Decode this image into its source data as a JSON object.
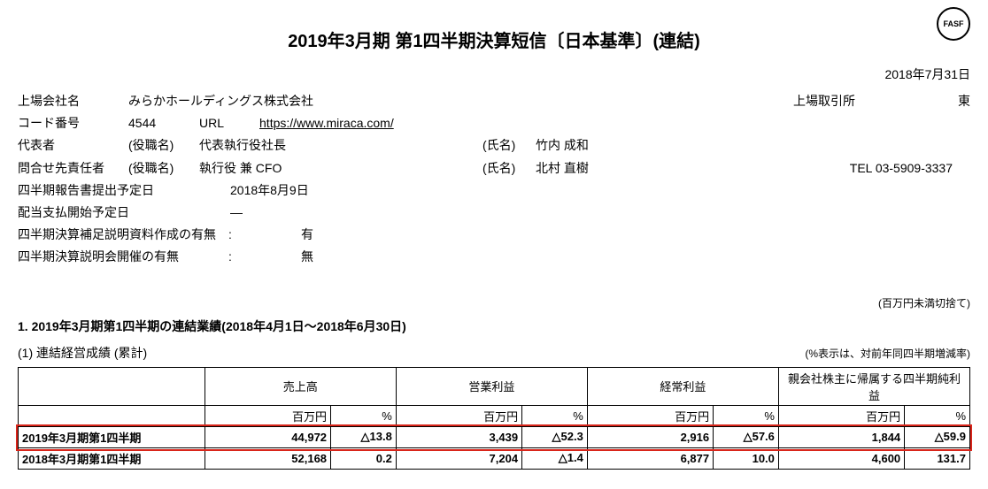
{
  "logo_text": "FASF",
  "title": "2019年3月期 第1四半期決算短信〔日本基準〕(連結)",
  "report_date": "2018年7月31日",
  "company": {
    "name_label": "上場会社名",
    "name_value": "みらかホールディングス株式会社",
    "exchange_label": "上場取引所",
    "exchange_value": "東",
    "code_label": "コード番号",
    "code_value": "4544",
    "url_label": "URL",
    "url_value": "https://www.miraca.com/",
    "rep_label": "代表者",
    "role_label_rep": "(役職名)",
    "role_value_rep": "代表執行役社長",
    "name_lbl_rep": "(氏名)",
    "rep_name": "竹内 成和",
    "contact_label": "問合せ先責任者",
    "role_label_contact": "(役職名)",
    "role_value_contact": "執行役 兼 CFO",
    "name_lbl_contact": "(氏名)",
    "contact_name": "北村 直樹",
    "tel_label": "TEL",
    "tel_value": "03-5909-3337",
    "report_date_label": "四半期報告書提出予定日",
    "report_date_value": "2018年8月9日",
    "div_date_label": "配当支払開始予定日",
    "div_date_value": "―",
    "supp_label": "四半期決算補足説明資料作成の有無",
    "supp_value": "有",
    "meeting_label": "四半期決算説明会開催の有無",
    "meeting_value": "無"
  },
  "unit_note": "(百万円未満切捨て)",
  "section1_title": "1. 2019年3月期第1四半期の連結業績(2018年4月1日～2018年6月30日)",
  "sub1_title": "(1) 連結経営成績 (累計)",
  "pct_note": "(%表示は、対前年同四半期増減率)",
  "table": {
    "headers": [
      "売上高",
      "営業利益",
      "経常利益",
      "親会社株主に帰属する四半期純利益"
    ],
    "unit_row": [
      "百万円",
      "%",
      "百万円",
      "%",
      "百万円",
      "%",
      "百万円",
      "%"
    ],
    "rows": [
      {
        "label": "2019年3月期第1四半期",
        "highlight": true,
        "cells": [
          "44,972",
          "△13.8",
          "3,439",
          "△52.3",
          "2,916",
          "△57.6",
          "1,844",
          "△59.9"
        ]
      },
      {
        "label": "2018年3月期第1四半期",
        "highlight": false,
        "cells": [
          "52,168",
          "0.2",
          "7,204",
          "△1.4",
          "6,877",
          "10.0",
          "4,600",
          "131.7"
        ]
      }
    ]
  }
}
